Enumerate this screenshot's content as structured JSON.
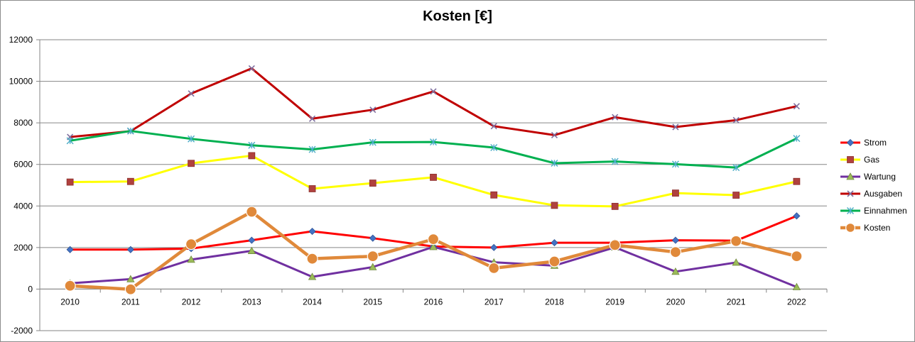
{
  "chart_data": {
    "type": "line",
    "title": "Kosten [€]",
    "xlabel": "",
    "ylabel": "",
    "ylim": [
      -2000,
      12000
    ],
    "yticks": [
      -2000,
      0,
      2000,
      4000,
      6000,
      8000,
      10000,
      12000
    ],
    "grid": true,
    "legend_position": "right",
    "categories": [
      "2010",
      "2011",
      "2012",
      "2013",
      "2014",
      "2015",
      "2016",
      "2017",
      "2018",
      "2019",
      "2020",
      "2021",
      "2022"
    ],
    "series": [
      {
        "name": "Strom",
        "color": "#ff0000",
        "marker": "diamond",
        "marker_color": "#4472c4",
        "values": [
          1900,
          1900,
          1950,
          2350,
          2780,
          2450,
          2050,
          2000,
          2230,
          2230,
          2350,
          2330,
          3520
        ]
      },
      {
        "name": "Gas",
        "color": "#ffff00",
        "marker": "square",
        "marker_color": "#b0413e",
        "values": [
          5150,
          5180,
          6050,
          6420,
          4830,
          5100,
          5380,
          4530,
          4030,
          3980,
          4620,
          4520,
          5180
        ]
      },
      {
        "name": "Wartung",
        "color": "#7030a0",
        "marker": "triangle",
        "marker_color": "#9bbb59",
        "values": [
          280,
          480,
          1420,
          1840,
          590,
          1060,
          2030,
          1290,
          1130,
          2010,
          840,
          1280,
          100
        ]
      },
      {
        "name": "Ausgaben",
        "color": "#c00000",
        "marker": "x",
        "marker_color": "#7f6f9f",
        "values": [
          7320,
          7600,
          9410,
          10620,
          8200,
          8630,
          9510,
          7840,
          7410,
          8270,
          7800,
          8130,
          8800
        ]
      },
      {
        "name": "Einnahmen",
        "color": "#00b050",
        "marker": "asterisk",
        "marker_color": "#4bacc6",
        "values": [
          7140,
          7610,
          7230,
          6920,
          6720,
          7060,
          7080,
          6810,
          6060,
          6140,
          6010,
          5850,
          7250
        ]
      },
      {
        "name": "Kosten",
        "color": "#e0893a",
        "marker": "circle",
        "marker_color": "#e0893a",
        "values": [
          160,
          -10,
          2160,
          3720,
          1460,
          1580,
          2400,
          1010,
          1330,
          2120,
          1780,
          2310,
          1580
        ]
      }
    ]
  }
}
